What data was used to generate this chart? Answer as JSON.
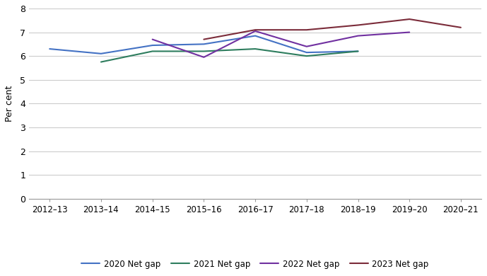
{
  "x_labels": [
    "2012–13",
    "2013–14",
    "2014–15",
    "2015–16",
    "2016–17",
    "2017–18",
    "2018–19",
    "2019–20",
    "2020–21"
  ],
  "series": {
    "2020 Net gap": {
      "values": [
        6.3,
        6.1,
        6.45,
        6.5,
        6.85,
        6.15,
        6.2,
        null,
        null
      ],
      "color": "#4472c4"
    },
    "2021 Net gap": {
      "values": [
        null,
        5.75,
        6.2,
        6.2,
        6.3,
        6.0,
        6.2,
        null,
        null
      ],
      "color": "#2e7d5e"
    },
    "2022 Net gap": {
      "values": [
        null,
        null,
        6.7,
        5.95,
        7.05,
        6.4,
        6.85,
        7.0,
        null
      ],
      "color": "#7030a0"
    },
    "2023 Net gap": {
      "values": [
        null,
        null,
        null,
        6.7,
        7.1,
        7.1,
        7.3,
        7.55,
        7.2
      ],
      "color": "#7b2c3a"
    }
  },
  "ylabel": "Per cent",
  "ylim": [
    0,
    8
  ],
  "yticks": [
    0,
    1,
    2,
    3,
    4,
    5,
    6,
    7,
    8
  ],
  "legend_order": [
    "2020 Net gap",
    "2021 Net gap",
    "2022 Net gap",
    "2023 Net gap"
  ],
  "grid_color": "#cccccc",
  "line_width": 1.5,
  "figsize": [
    6.89,
    3.9
  ],
  "dpi": 100
}
